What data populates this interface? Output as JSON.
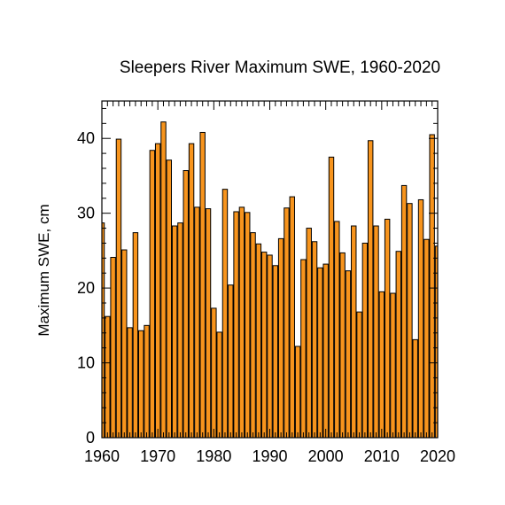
{
  "chart_data": {
    "type": "bar",
    "title": "Sleepers River Maximum SWE, 1960-2020",
    "xlabel": "",
    "ylabel": "Maximum SWE, cm",
    "xlim": [
      1960,
      2020
    ],
    "ylim": [
      0,
      45
    ],
    "xticks": [
      "1960",
      "1970",
      "1980",
      "1990",
      "2000",
      "2010",
      "2020"
    ],
    "yticks": [
      "0",
      "10",
      "20",
      "30",
      "40"
    ],
    "bar_color": "#f7941d",
    "years": [
      1960,
      1961,
      1962,
      1963,
      1964,
      1965,
      1966,
      1967,
      1968,
      1969,
      1970,
      1971,
      1972,
      1973,
      1974,
      1975,
      1976,
      1977,
      1978,
      1979,
      1980,
      1981,
      1982,
      1983,
      1984,
      1985,
      1986,
      1987,
      1988,
      1989,
      1990,
      1991,
      1992,
      1993,
      1994,
      1995,
      1996,
      1997,
      1998,
      1999,
      2000,
      2001,
      2002,
      2003,
      2004,
      2005,
      2006,
      2007,
      2008,
      2009,
      2010,
      2011,
      2012,
      2013,
      2014,
      2015,
      2016,
      2017,
      2018,
      2019,
      2020
    ],
    "values": [
      28.7,
      16.2,
      24.1,
      39.9,
      25.1,
      14.7,
      27.4,
      14.3,
      15.0,
      38.4,
      39.3,
      42.2,
      37.1,
      28.3,
      28.7,
      35.7,
      39.3,
      30.8,
      40.8,
      30.6,
      17.3,
      14.1,
      33.2,
      20.4,
      30.2,
      30.8,
      30.1,
      27.4,
      25.9,
      24.8,
      24.4,
      23.0,
      26.6,
      30.7,
      32.2,
      12.2,
      23.8,
      28.0,
      26.2,
      22.7,
      23.2,
      37.5,
      28.9,
      24.7,
      22.3,
      28.3,
      16.8,
      26.0,
      39.7,
      28.3,
      19.5,
      29.2,
      19.3,
      24.9,
      33.7,
      31.3,
      13.1,
      31.8,
      26.5,
      40.5,
      25.6
    ]
  }
}
